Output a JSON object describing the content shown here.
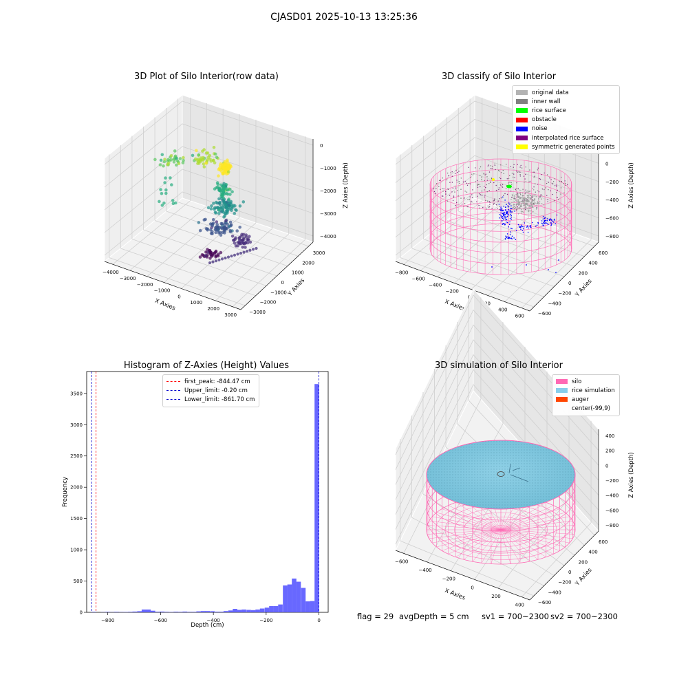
{
  "figure": {
    "title": "CJASD01 2025-10-13 13:25:36"
  },
  "plots": {
    "raw": {
      "title": "3D Plot of Silo Interior(row data)",
      "x_label": "X Axies",
      "y_label": "Y Axies",
      "z_label": "Z Axies (Depth)",
      "x_ticks": [
        "−4000",
        "−3000",
        "−2000",
        "−1000",
        "0",
        "1000",
        "2000",
        "3000"
      ],
      "y_ticks": [
        "−3000",
        "−2000",
        "−1000",
        "0",
        "1000",
        "2000",
        "3000"
      ],
      "z_ticks": [
        "−4000",
        "−3000",
        "−2000",
        "−1000",
        "0"
      ]
    },
    "classify": {
      "title": "3D classify of Silo Interior",
      "x_label": "X Axies",
      "y_label": "Y Axies",
      "z_label": "Z Axies (Depth)",
      "x_ticks": [
        "−800",
        "−600",
        "−400",
        "−200",
        "0",
        "200",
        "400",
        "600"
      ],
      "y_ticks": [
        "−600",
        "−400",
        "−200",
        "0",
        "200",
        "400",
        "600"
      ],
      "z_ticks": [
        "−800",
        "−600",
        "−400",
        "−200",
        "0",
        "200"
      ],
      "legend": [
        {
          "label": "original data",
          "color": "#b3b3b3"
        },
        {
          "label": "inner wall",
          "color": "#808080"
        },
        {
          "label": "rice surface",
          "color": "#00ff00"
        },
        {
          "label": "obstacle",
          "color": "#ff0000"
        },
        {
          "label": "noise",
          "color": "#0000ff"
        },
        {
          "label": "interpolated rice surface",
          "color": "#800080"
        },
        {
          "label": "symmetric generated points",
          "color": "#ffff00"
        }
      ]
    },
    "histogram": {
      "title": "Histogram of Z-Axies (Height) Values",
      "x_label": "Depth (cm)",
      "y_label": "Frequency",
      "x_ticks": [
        "−800",
        "−600",
        "−400",
        "−200",
        "0"
      ],
      "y_ticks": [
        "0",
        "500",
        "1000",
        "1500",
        "2000",
        "2500",
        "3000",
        "3500"
      ],
      "legend": [
        {
          "label": "first_peak: -844.47 cm",
          "color": "#ff0000"
        },
        {
          "label": "Upper_limit: -0.20 cm",
          "color": "#0000cc"
        },
        {
          "label": "Lower_limit: -861.70 cm",
          "color": "#0000cc"
        }
      ]
    },
    "simulation": {
      "title": "3D simulation of Silo Interior",
      "x_label": "X Axies",
      "y_label": "Y Axies",
      "z_label": "Z Axies (Depth)",
      "x_ticks": [
        "−600",
        "−400",
        "−200",
        "0",
        "200",
        "400"
      ],
      "y_ticks": [
        "−600",
        "−400",
        "−200",
        "0",
        "200",
        "400",
        "600"
      ],
      "z_ticks": [
        "−800",
        "−600",
        "−400",
        "−200",
        "0",
        "200",
        "400"
      ],
      "legend": [
        {
          "label": "silo",
          "color": "#ff69b4"
        },
        {
          "label": "rice simulation",
          "color": "#87ceeb"
        },
        {
          "label": "auger",
          "color": "#ff4500"
        },
        {
          "label": "center(-99,9)",
          "color": ""
        }
      ]
    }
  },
  "footer": {
    "flag": "flag = 29",
    "avg_depth": "avgDepth = 5 cm",
    "sv1": "sv1 = 700~2300",
    "sv2": "sv2 = 700~2300"
  },
  "chart_data": [
    {
      "type": "scatter",
      "title": "3D Plot of Silo Interior(row data)",
      "xlabel": "X Axies",
      "ylabel": "Y Axies",
      "zlabel": "Z Axies (Depth)",
      "xlim": [
        -4500,
        3000
      ],
      "ylim": [
        -3000,
        3000
      ],
      "zlim": [
        -4500,
        0
      ],
      "note_colormap": "viridis by depth",
      "clusters": [
        {
          "x": -2800,
          "y": 0,
          "z": -600
        },
        {
          "x": 1600,
          "y": 200,
          "z": -1000
        },
        {
          "x": 700,
          "y": 500,
          "z": -2600
        },
        {
          "x": 0,
          "y": -700,
          "z": -3600
        }
      ]
    },
    {
      "type": "scatter",
      "title": "3D classify of Silo Interior",
      "xlabel": "X Axies",
      "ylabel": "Y Axies",
      "zlabel": "Z Axies (Depth)",
      "xlim": [
        -800,
        600
      ],
      "ylim": [
        -600,
        600
      ],
      "zlim": [
        -900,
        300
      ],
      "series": [
        {
          "name": "original data"
        },
        {
          "name": "inner wall"
        },
        {
          "name": "rice surface"
        },
        {
          "name": "obstacle"
        },
        {
          "name": "noise"
        },
        {
          "name": "interpolated rice surface"
        },
        {
          "name": "symmetric generated points"
        }
      ]
    },
    {
      "type": "bar",
      "title": "Histogram of Z-Axies (Height) Values",
      "xlabel": "Depth (cm)",
      "ylabel": "Frequency",
      "xlim": [
        -880,
        35
      ],
      "ylim": [
        0,
        3850
      ],
      "bin_width": 17.2,
      "bins": [
        {
          "x": -853,
          "value": 8
        },
        {
          "x": -818,
          "value": 3
        },
        {
          "x": -801,
          "value": 8
        },
        {
          "x": -784,
          "value": 3
        },
        {
          "x": -767,
          "value": 8
        },
        {
          "x": -749,
          "value": 4
        },
        {
          "x": -732,
          "value": 5
        },
        {
          "x": -715,
          "value": 8
        },
        {
          "x": -698,
          "value": 12
        },
        {
          "x": -680,
          "value": 18
        },
        {
          "x": -663,
          "value": 45
        },
        {
          "x": -646,
          "value": 45
        },
        {
          "x": -629,
          "value": 25
        },
        {
          "x": -611,
          "value": 10
        },
        {
          "x": -594,
          "value": 12
        },
        {
          "x": -577,
          "value": 8
        },
        {
          "x": -560,
          "value": 5
        },
        {
          "x": -542,
          "value": 10
        },
        {
          "x": -525,
          "value": 8
        },
        {
          "x": -508,
          "value": 12
        },
        {
          "x": -491,
          "value": 8
        },
        {
          "x": -473,
          "value": 8
        },
        {
          "x": -456,
          "value": 15
        },
        {
          "x": -439,
          "value": 20
        },
        {
          "x": -422,
          "value": 20
        },
        {
          "x": -404,
          "value": 18
        },
        {
          "x": -387,
          "value": 10
        },
        {
          "x": -370,
          "value": 10
        },
        {
          "x": -353,
          "value": 20
        },
        {
          "x": -335,
          "value": 30
        },
        {
          "x": -318,
          "value": 55
        },
        {
          "x": -301,
          "value": 40
        },
        {
          "x": -284,
          "value": 45
        },
        {
          "x": -266,
          "value": 40
        },
        {
          "x": -249,
          "value": 35
        },
        {
          "x": -232,
          "value": 45
        },
        {
          "x": -215,
          "value": 60
        },
        {
          "x": -197,
          "value": 75
        },
        {
          "x": -180,
          "value": 100
        },
        {
          "x": -163,
          "value": 100
        },
        {
          "x": -146,
          "value": 125
        },
        {
          "x": -128,
          "value": 430
        },
        {
          "x": -111,
          "value": 445
        },
        {
          "x": -94,
          "value": 540
        },
        {
          "x": -77,
          "value": 490
        },
        {
          "x": -59,
          "value": 390
        },
        {
          "x": -42,
          "value": 175
        },
        {
          "x": -25,
          "value": 180
        },
        {
          "x": -8,
          "value": 3650
        }
      ],
      "vlines": [
        {
          "name": "first_peak: -844.47 cm",
          "x": -844.47
        },
        {
          "name": "Upper_limit: -0.20 cm",
          "x": -0.2
        },
        {
          "name": "Lower_limit: -861.70 cm",
          "x": -861.7
        }
      ]
    },
    {
      "type": "scatter",
      "title": "3D simulation of Silo Interior",
      "xlabel": "X Axies",
      "ylabel": "Y Axies",
      "zlabel": "Z Axies (Depth)",
      "xlim": [
        -750,
        550
      ],
      "ylim": [
        -650,
        650
      ],
      "zlim": [
        -900,
        450
      ],
      "series": [
        {
          "name": "silo"
        },
        {
          "name": "rice simulation"
        },
        {
          "name": "auger"
        },
        {
          "name": "center(-99,9)"
        }
      ]
    }
  ]
}
